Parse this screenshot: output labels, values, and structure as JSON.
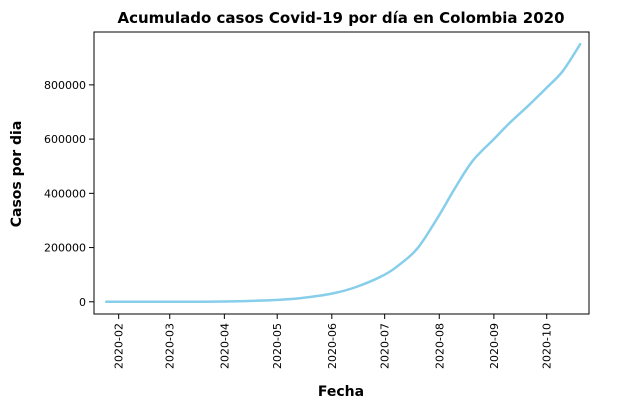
{
  "chart_data": {
    "type": "line",
    "title": "Acumulado casos Covid-19 por día en Colombia 2020",
    "xlabel": "Fecha",
    "ylabel": "Casos por dia",
    "xlim": [
      "2020-01-18",
      "2020-10-25"
    ],
    "ylim": [
      -45000,
      995000
    ],
    "x_ticks": [
      "2020-02-01",
      "2020-03-01",
      "2020-04-01",
      "2020-05-01",
      "2020-06-01",
      "2020-07-01",
      "2020-08-01",
      "2020-09-01",
      "2020-10-01"
    ],
    "x_tick_labels": [
      "2020-02",
      "2020-03",
      "2020-04",
      "2020-05",
      "2020-06",
      "2020-07",
      "2020-08",
      "2020-09",
      "2020-10"
    ],
    "y_ticks": [
      0,
      200000,
      400000,
      600000,
      800000
    ],
    "y_tick_labels": [
      "0",
      "200000",
      "400000",
      "600000",
      "800000"
    ],
    "grid": false,
    "series": [
      {
        "color": "#87ceeb",
        "x": [
          "2020-01-25",
          "2020-02-15",
          "2020-03-06",
          "2020-03-20",
          "2020-04-01",
          "2020-04-15",
          "2020-05-01",
          "2020-05-15",
          "2020-06-01",
          "2020-06-15",
          "2020-07-01",
          "2020-07-10",
          "2020-07-20",
          "2020-08-01",
          "2020-08-10",
          "2020-08-20",
          "2020-09-01",
          "2020-09-10",
          "2020-09-20",
          "2020-10-01",
          "2020-10-10",
          "2020-10-20"
        ],
        "values": [
          0,
          0,
          0,
          200,
          1000,
          3000,
          7000,
          14000,
          30000,
          55000,
          100000,
          140000,
          200000,
          320000,
          420000,
          520000,
          600000,
          660000,
          720000,
          790000,
          850000,
          950000
        ]
      }
    ]
  }
}
